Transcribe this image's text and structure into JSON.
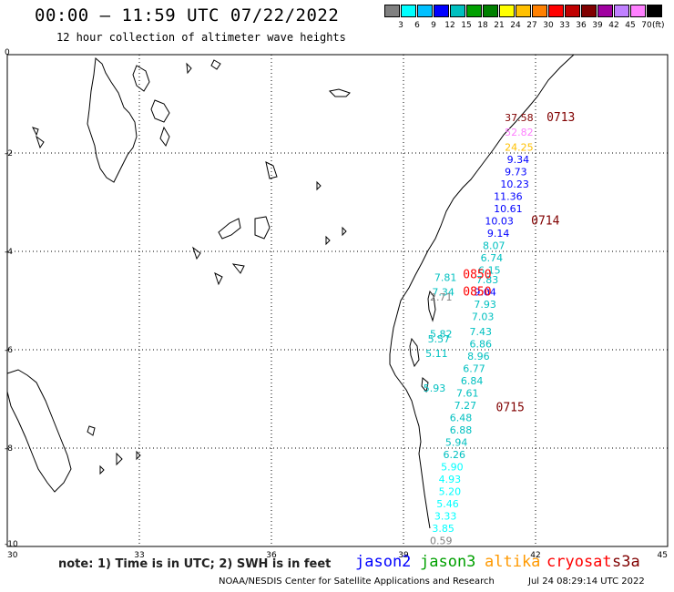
{
  "header": {
    "title": "00:00 – 11:59 UTC 07/22/2022",
    "subtitle": "12 hour collection of altimeter wave heights"
  },
  "legend": {
    "unit": "(ft)",
    "colors": [
      "#808080",
      "#00ffff",
      "#00c0ff",
      "#0000ff",
      "#00c0c0",
      "#00a000",
      "#008000",
      "#ffff00",
      "#ffc000",
      "#ff8000",
      "#ff0000",
      "#c00000",
      "#800000",
      "#a000a0",
      "#c080ff",
      "#ff80ff",
      "#000000"
    ],
    "labels": [
      "3",
      "6",
      "9",
      "12",
      "15",
      "18",
      "21",
      "24",
      "27",
      "30",
      "33",
      "36",
      "39",
      "42",
      "45",
      "70"
    ]
  },
  "axes": {
    "x_ticks": [
      "30",
      "33",
      "36",
      "39",
      "42",
      "45"
    ],
    "y_ticks": [
      "0",
      "-2",
      "-4",
      "-6",
      "-8",
      "-10"
    ]
  },
  "observations": [
    {
      "text": "37.58",
      "lon": 41.3,
      "lat": -1.35,
      "color": "#800000"
    },
    {
      "text": "52.82",
      "lon": 41.3,
      "lat": -1.65,
      "color": "#ff80ff"
    },
    {
      "text": "24.25",
      "lon": 41.3,
      "lat": -1.95,
      "color": "#ffc000"
    },
    {
      "text": "9.34",
      "lon": 41.35,
      "lat": -2.2,
      "color": "#0000ff"
    },
    {
      "text": "9.73",
      "lon": 41.3,
      "lat": -2.45,
      "color": "#0000ff"
    },
    {
      "text": "10.23",
      "lon": 41.2,
      "lat": -2.7,
      "color": "#0000ff"
    },
    {
      "text": "11.36",
      "lon": 41.05,
      "lat": -2.95,
      "color": "#0000ff"
    },
    {
      "text": "10.61",
      "lon": 41.05,
      "lat": -3.2,
      "color": "#0000ff"
    },
    {
      "text": "10.03",
      "lon": 40.85,
      "lat": -3.45,
      "color": "#0000ff"
    },
    {
      "text": "9.14",
      "lon": 40.9,
      "lat": -3.7,
      "color": "#0000ff"
    },
    {
      "text": "8.07",
      "lon": 40.8,
      "lat": -3.95,
      "color": "#00c0c0"
    },
    {
      "text": "6.74",
      "lon": 40.75,
      "lat": -4.2,
      "color": "#00c0c0"
    },
    {
      "text": "6.15",
      "lon": 40.7,
      "lat": -4.45,
      "color": "#00c0c0"
    },
    {
      "text": "7.83",
      "lon": 40.65,
      "lat": -4.65,
      "color": "#00c0c0"
    },
    {
      "text": "9.04",
      "lon": 40.6,
      "lat": -4.9,
      "color": "#0000ff"
    },
    {
      "text": "7.81",
      "lon": 39.7,
      "lat": -4.6,
      "color": "#00c0c0"
    },
    {
      "text": "7.34",
      "lon": 39.65,
      "lat": -4.9,
      "color": "#00c0c0"
    },
    {
      "text": "2.71",
      "lon": 39.6,
      "lat": -5.0,
      "color": "#808080"
    },
    {
      "text": "7.93",
      "lon": 40.6,
      "lat": -5.15,
      "color": "#00c0c0"
    },
    {
      "text": "7.03",
      "lon": 40.55,
      "lat": -5.4,
      "color": "#00c0c0"
    },
    {
      "text": "7.43",
      "lon": 40.5,
      "lat": -5.7,
      "color": "#00c0c0"
    },
    {
      "text": "5.82",
      "lon": 39.6,
      "lat": -5.75,
      "color": "#00c0c0"
    },
    {
      "text": "5.57",
      "lon": 39.55,
      "lat": -5.85,
      "color": "#00c0c0"
    },
    {
      "text": "6.86",
      "lon": 40.5,
      "lat": -5.95,
      "color": "#00c0c0"
    },
    {
      "text": "5.11",
      "lon": 39.5,
      "lat": -6.15,
      "color": "#00c0c0"
    },
    {
      "text": "8.96",
      "lon": 40.45,
      "lat": -6.2,
      "color": "#00c0c0"
    },
    {
      "text": "6.77",
      "lon": 40.35,
      "lat": -6.45,
      "color": "#00c0c0"
    },
    {
      "text": "6.84",
      "lon": 40.3,
      "lat": -6.7,
      "color": "#00c0c0"
    },
    {
      "text": "5.93",
      "lon": 39.45,
      "lat": -6.85,
      "color": "#00c0c0"
    },
    {
      "text": "7.61",
      "lon": 40.2,
      "lat": -6.95,
      "color": "#00c0c0"
    },
    {
      "text": "7.27",
      "lon": 40.15,
      "lat": -7.2,
      "color": "#00c0c0"
    },
    {
      "text": "6.48",
      "lon": 40.05,
      "lat": -7.45,
      "color": "#00c0c0"
    },
    {
      "text": "6.88",
      "lon": 40.05,
      "lat": -7.7,
      "color": "#00c0c0"
    },
    {
      "text": "5.94",
      "lon": 39.95,
      "lat": -7.95,
      "color": "#00c0c0"
    },
    {
      "text": "6.26",
      "lon": 39.9,
      "lat": -8.2,
      "color": "#00c0c0"
    },
    {
      "text": "5.90",
      "lon": 39.85,
      "lat": -8.45,
      "color": "#00ffff"
    },
    {
      "text": "4.93",
      "lon": 39.8,
      "lat": -8.7,
      "color": "#00ffff"
    },
    {
      "text": "5.20",
      "lon": 39.8,
      "lat": -8.95,
      "color": "#00ffff"
    },
    {
      "text": "5.46",
      "lon": 39.75,
      "lat": -9.2,
      "color": "#00ffff"
    },
    {
      "text": "3.33",
      "lon": 39.7,
      "lat": -9.45,
      "color": "#00ffff"
    },
    {
      "text": "3.85",
      "lon": 39.65,
      "lat": -9.7,
      "color": "#00ffff"
    },
    {
      "text": "0.59",
      "lon": 39.6,
      "lat": -9.95,
      "color": "#808080"
    }
  ],
  "passes": [
    {
      "text": "0713",
      "lon": 42.25,
      "lat": -1.35,
      "color": "#800000"
    },
    {
      "text": "0714",
      "lon": 41.9,
      "lat": -3.45,
      "color": "#800000"
    },
    {
      "text": "0850",
      "lon": 40.35,
      "lat": -4.55,
      "color": "#ff0000"
    },
    {
      "text": "0850",
      "lon": 40.35,
      "lat": -4.9,
      "color": "#ff0000"
    },
    {
      "text": "0715",
      "lon": 41.1,
      "lat": -7.25,
      "color": "#800000"
    }
  ],
  "footer": {
    "note": "note: 1) Time is in UTC; 2) SWH is in feet",
    "satellites": [
      {
        "name": "jason2",
        "color": "#0000ff"
      },
      {
        "name": "jason3",
        "color": "#00a000"
      },
      {
        "name": "altika",
        "color": "#ff9900"
      },
      {
        "name": "cryosat",
        "color": "#ff0000"
      },
      {
        "name": "s3a",
        "color": "#800000"
      }
    ],
    "credit": "NOAA/NESDIS Center for Satellite Applications and Research",
    "timestamp": "Jul 24 08:29:14 UTC 2022"
  }
}
